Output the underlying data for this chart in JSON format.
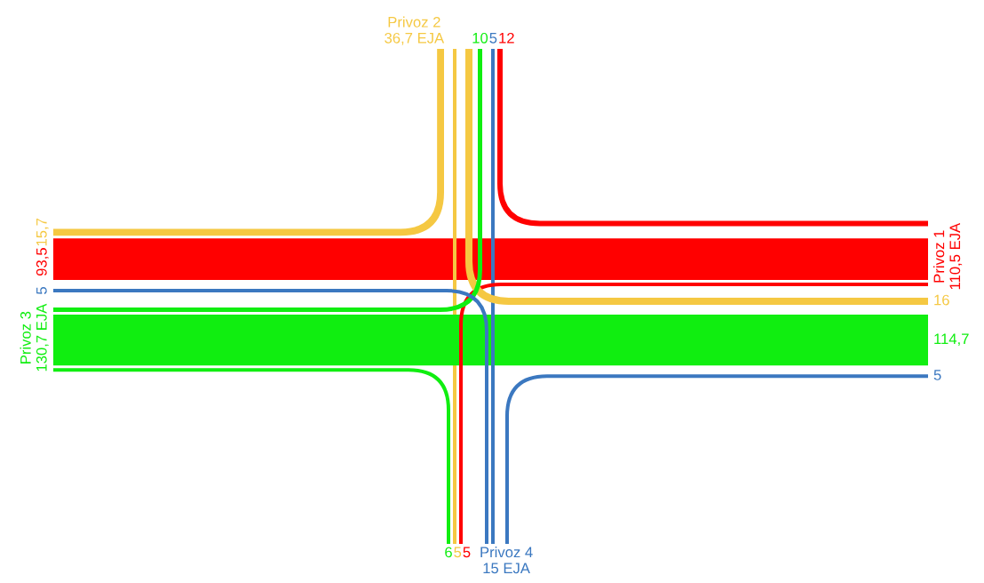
{
  "chart_data": {
    "type": "other",
    "categories": [
      "Privoz 1",
      "Privoz 2",
      "Privoz 3",
      "Privoz 4"
    ],
    "totals": [
      "110,5 EJA",
      "36,7 EJA",
      "130,7 EJA",
      "15 EJA"
    ],
    "series": [
      {
        "color": "#ff0000",
        "values": [
          null,
          12,
          93.5,
          5
        ],
        "value_labels": [
          null,
          "12",
          "93,5",
          "5"
        ]
      },
      {
        "color": "#f5c842",
        "values": [
          16,
          null,
          15.7,
          5
        ],
        "value_labels": [
          "16",
          null,
          "15,7",
          "5"
        ]
      },
      {
        "color": "#10ee10",
        "values": [
          114.7,
          10,
          null,
          6
        ],
        "value_labels": [
          "114,7",
          "10",
          null,
          "6"
        ]
      },
      {
        "color": "#3b78c0",
        "values": [
          5,
          5,
          5,
          null
        ],
        "value_labels": [
          "5",
          "5",
          "5",
          null
        ]
      }
    ]
  }
}
